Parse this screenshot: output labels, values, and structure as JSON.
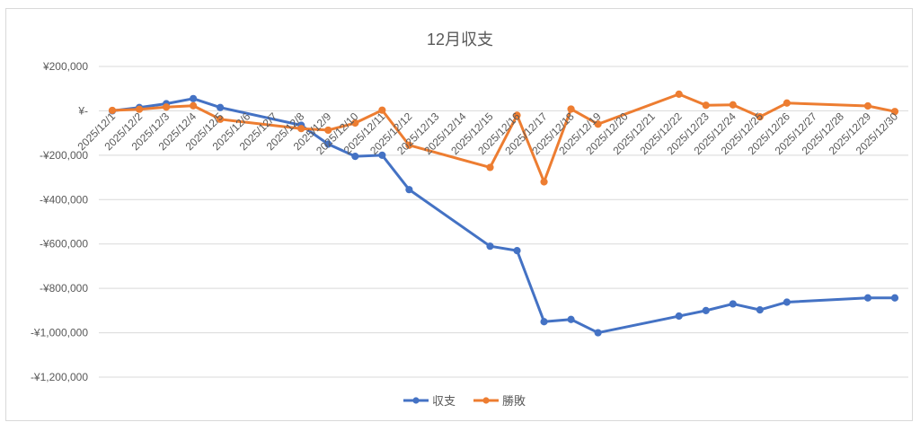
{
  "chart_data": {
    "type": "line",
    "title": "12月収支",
    "xlabel": "",
    "ylabel": "",
    "categories": [
      "2025/12/1",
      "2025/12/2",
      "2025/12/3",
      "2025/12/4",
      "2025/12/5",
      "2025/12/6",
      "2025/12/7",
      "2025/12/8",
      "2025/12/9",
      "2025/12/10",
      "2025/12/11",
      "2025/12/12",
      "2025/12/13",
      "2025/12/14",
      "2025/12/15",
      "2025/12/16",
      "2025/12/17",
      "2025/12/18",
      "2025/12/19",
      "2025/12/20",
      "2025/12/21",
      "2025/12/22",
      "2025/12/23",
      "2025/12/24",
      "2025/12/25",
      "2025/12/26",
      "2025/12/27",
      "2025/12/28",
      "2025/12/29",
      "2025/12/30"
    ],
    "ylim": [
      -1200000,
      200000
    ],
    "yticks": [
      200000,
      0,
      -200000,
      -400000,
      -600000,
      -800000,
      -1000000,
      -1200000
    ],
    "ytick_labels": [
      "¥200,000",
      "¥-",
      "-¥200,000",
      "-¥400,000",
      "-¥600,000",
      "-¥800,000",
      "-¥1,000,000",
      "-¥1,200,000"
    ],
    "grid": true,
    "legend_position": "bottom",
    "series": [
      {
        "name": "収支",
        "color": "#4472c4",
        "values": [
          {
            "x": "2025/12/1",
            "y": 0
          },
          {
            "x": "2025/12/2",
            "y": 15000
          },
          {
            "x": "2025/12/3",
            "y": 32000
          },
          {
            "x": "2025/12/4",
            "y": 55000
          },
          {
            "x": "2025/12/5",
            "y": 15000
          },
          {
            "x": "2025/12/8",
            "y": -65000
          },
          {
            "x": "2025/12/9",
            "y": -150000
          },
          {
            "x": "2025/12/10",
            "y": -205000
          },
          {
            "x": "2025/12/11",
            "y": -200000
          },
          {
            "x": "2025/12/12",
            "y": -355000
          },
          {
            "x": "2025/12/15",
            "y": -610000
          },
          {
            "x": "2025/12/16",
            "y": -630000
          },
          {
            "x": "2025/12/17",
            "y": -950000
          },
          {
            "x": "2025/12/18",
            "y": -940000
          },
          {
            "x": "2025/12/19",
            "y": -1000000
          },
          {
            "x": "2025/12/22",
            "y": -925000
          },
          {
            "x": "2025/12/23",
            "y": -900000
          },
          {
            "x": "2025/12/24",
            "y": -870000
          },
          {
            "x": "2025/12/25",
            "y": -897000
          },
          {
            "x": "2025/12/26",
            "y": -862000
          },
          {
            "x": "2025/12/29",
            "y": -843000
          },
          {
            "x": "2025/12/30",
            "y": -843000
          }
        ]
      },
      {
        "name": "勝敗",
        "color": "#ed7d31",
        "values": [
          {
            "x": "2025/12/1",
            "y": 2000
          },
          {
            "x": "2025/12/2",
            "y": 7000
          },
          {
            "x": "2025/12/3",
            "y": 17000
          },
          {
            "x": "2025/12/4",
            "y": 23000
          },
          {
            "x": "2025/12/5",
            "y": -38000
          },
          {
            "x": "2025/12/8",
            "y": -80000
          },
          {
            "x": "2025/12/9",
            "y": -87000
          },
          {
            "x": "2025/12/10",
            "y": -55000
          },
          {
            "x": "2025/12/11",
            "y": 3000
          },
          {
            "x": "2025/12/12",
            "y": -155000
          },
          {
            "x": "2025/12/15",
            "y": -255000
          },
          {
            "x": "2025/12/16",
            "y": -20000
          },
          {
            "x": "2025/12/17",
            "y": -320000
          },
          {
            "x": "2025/12/18",
            "y": 8000
          },
          {
            "x": "2025/12/19",
            "y": -60000
          },
          {
            "x": "2025/12/22",
            "y": 75000
          },
          {
            "x": "2025/12/23",
            "y": 25000
          },
          {
            "x": "2025/12/24",
            "y": 27000
          },
          {
            "x": "2025/12/25",
            "y": -27000
          },
          {
            "x": "2025/12/26",
            "y": 35000
          },
          {
            "x": "2025/12/29",
            "y": 22000
          },
          {
            "x": "2025/12/30",
            "y": -3000
          }
        ]
      }
    ]
  }
}
